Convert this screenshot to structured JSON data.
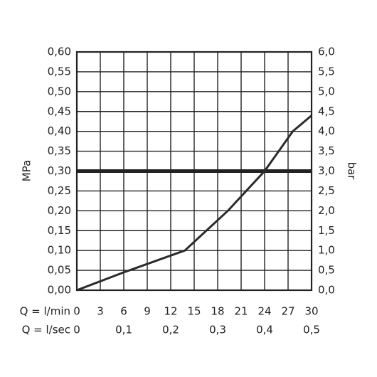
{
  "chart_data": {
    "type": "line",
    "x": [
      0,
      6,
      13.8,
      19.3,
      24,
      27.6,
      30
    ],
    "values": [
      0,
      0.045,
      0.1,
      0.2,
      0.3,
      0.4,
      0.44
    ],
    "color": "#2b2b2b",
    "reference_line": 0.3,
    "grid": true,
    "ylabel": "MPa",
    "y2label": "bar",
    "xlabel": "Q = l/min",
    "x2label": "Q = l/sec",
    "xlim": [
      0,
      30
    ],
    "xticks": [
      0,
      3,
      6,
      9,
      12,
      15,
      18,
      21,
      24,
      27,
      30
    ],
    "x2lim": [
      0,
      0.5
    ],
    "x2ticks": [
      0,
      {
        "value": 0.1,
        "label": "0,1"
      },
      {
        "value": 0.2,
        "label": "0,2"
      },
      {
        "value": 0.3,
        "label": "0,3"
      },
      {
        "value": 0.4,
        "label": "0,4"
      },
      {
        "value": 0.5,
        "label": "0,5"
      }
    ],
    "ylim": [
      0,
      0.6
    ],
    "yticks": [
      {
        "value": 0,
        "label": "0,00"
      },
      {
        "value": 0.05,
        "label": "0,05"
      },
      {
        "value": 0.1,
        "label": "0,10"
      },
      {
        "value": 0.15,
        "label": "0,15"
      },
      {
        "value": 0.2,
        "label": "0,20"
      },
      {
        "value": 0.25,
        "label": "0,25"
      },
      {
        "value": 0.3,
        "label": "0,30"
      },
      {
        "value": 0.35,
        "label": "0,35"
      },
      {
        "value": 0.4,
        "label": "0,40"
      },
      {
        "value": 0.45,
        "label": "0,45"
      },
      {
        "value": 0.5,
        "label": "0,50"
      },
      {
        "value": 0.55,
        "label": "0,55"
      },
      {
        "value": 0.6,
        "label": "0,60"
      }
    ],
    "y2lim": [
      0,
      6
    ],
    "y2ticks": [
      {
        "value": 0,
        "label": "0,0"
      },
      {
        "value": 0.5,
        "label": "0,5"
      },
      {
        "value": 1,
        "label": "1,0"
      },
      {
        "value": 1.5,
        "label": "1,5"
      },
      {
        "value": 2,
        "label": "2,0"
      },
      {
        "value": 2.5,
        "label": "2,5"
      },
      {
        "value": 3,
        "label": "3,0"
      },
      {
        "value": 3.5,
        "label": "3,5"
      },
      {
        "value": 4,
        "label": "4,0"
      },
      {
        "value": 4.5,
        "label": "4,5"
      },
      {
        "value": 5,
        "label": "5,0"
      },
      {
        "value": 5.5,
        "label": "5,5"
      },
      {
        "value": 6,
        "label": "6,0"
      }
    ]
  }
}
